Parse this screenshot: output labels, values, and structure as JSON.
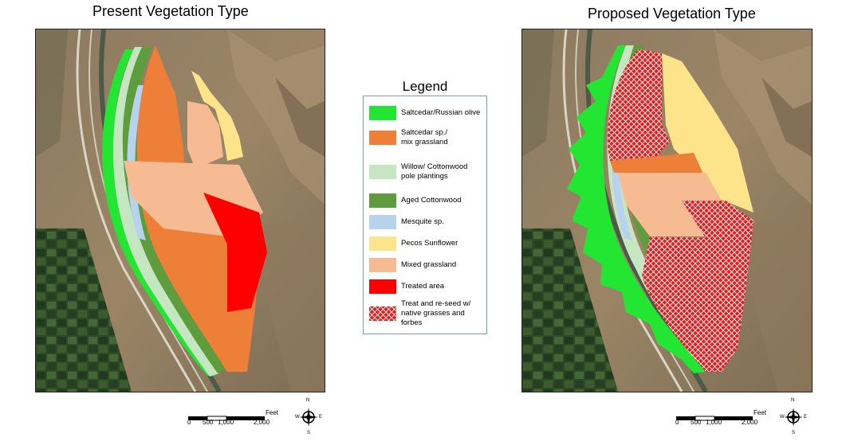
{
  "maps": {
    "present": {
      "title": "Present Vegetation Type"
    },
    "proposed": {
      "title": "Proposed Vegetation Type"
    }
  },
  "legend": {
    "title": "Legend",
    "items": [
      {
        "label": "Saltcedar/Russian olive",
        "color": "#22e632"
      },
      {
        "label": "Saltcedar sp./\nmix grassland",
        "color": "#ee7f38"
      },
      {
        "label": "Willow/ Cottonwood\npole plantings",
        "color": "#c6e5c1"
      },
      {
        "label": "Aged  Cottonwood",
        "color": "#5e9c3d"
      },
      {
        "label": "Mesquite sp.",
        "color": "#b7d2ec"
      },
      {
        "label": "Pecos Sunflower",
        "color": "#fde48a"
      },
      {
        "label": "Mixed grassland",
        "color": "#f7bb94"
      },
      {
        "label": "Treated area",
        "color": "#ff0000"
      },
      {
        "label": "Treat and re-seed w/\nnative grasses and\nforbes",
        "color": "#ee2222",
        "pattern": "crosshatch"
      }
    ]
  },
  "scale": {
    "unit": "Feet",
    "ticks": [
      "0",
      "500",
      "1,000",
      "2,000"
    ]
  },
  "compass": {
    "n": "N",
    "s": "S",
    "e": "E",
    "w": "W"
  }
}
